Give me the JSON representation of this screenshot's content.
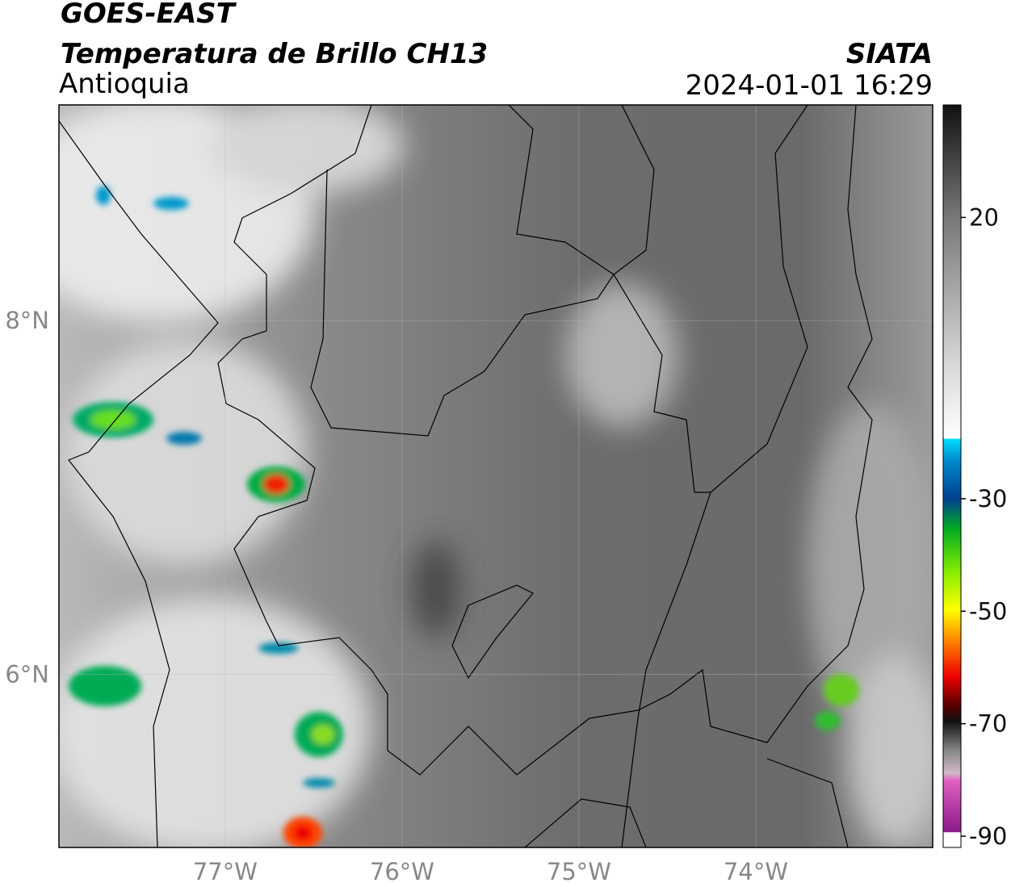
{
  "chart_data": {
    "type": "map",
    "title": "GOES-EAST",
    "subtitle": "Temperatura de Brillo CH13",
    "source": "SIATA",
    "region": "Antioquia",
    "datetime": "2024-01-01 16:29",
    "xlim": [
      -77.94,
      -73.0
    ],
    "ylim": [
      5.02,
      9.22
    ],
    "xticks": [
      {
        "value": -77,
        "label": "77°W"
      },
      {
        "value": -76,
        "label": "76°W"
      },
      {
        "value": -75,
        "label": "75°W"
      },
      {
        "value": -74,
        "label": "74°W"
      }
    ],
    "yticks": [
      {
        "value": 6,
        "label": "6°N"
      },
      {
        "value": 8,
        "label": "8°N"
      }
    ],
    "grid": true,
    "colorbar": {
      "lim": [
        -92,
        40
      ],
      "ticks": [
        20,
        -30,
        -50,
        -70,
        -90
      ]
    }
  }
}
